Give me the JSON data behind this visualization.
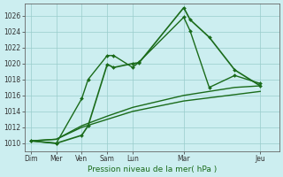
{
  "title": "",
  "xlabel": "Pression niveau de la mer( hPa )",
  "ylabel": "",
  "background_color": "#cceef0",
  "grid_color": "#99cccc",
  "line_color": "#1a6b1a",
  "ylim": [
    1009,
    1027.5
  ],
  "yticks": [
    1010,
    1012,
    1014,
    1016,
    1018,
    1020,
    1022,
    1024,
    1026
  ],
  "x_positions": [
    0,
    2,
    4,
    6,
    8,
    12,
    18
  ],
  "x_labels": [
    "Dim",
    "Mer",
    "Ven",
    "Sam",
    "Lun",
    "Mar",
    "Jeu"
  ],
  "xlim": [
    -0.5,
    19.5
  ],
  "series": [
    {
      "x": [
        0,
        2,
        4,
        4.5,
        6,
        6.5,
        8,
        8.5,
        12,
        12.5,
        14,
        16,
        18
      ],
      "y": [
        1010.3,
        1010.0,
        1011.0,
        1012.2,
        1019.9,
        1019.5,
        1020.0,
        1020.1,
        1027.0,
        1025.5,
        1023.3,
        1019.2,
        1017.2
      ],
      "marker": "D",
      "ms": 2.0,
      "lw": 1.2
    },
    {
      "x": [
        0,
        2,
        4,
        4.5,
        6,
        6.5,
        8,
        8.5,
        12,
        12.5,
        14,
        16,
        18
      ],
      "y": [
        1010.3,
        1010.0,
        1015.6,
        1018.0,
        1021.0,
        1021.0,
        1019.5,
        1020.2,
        1025.8,
        1024.1,
        1017.0,
        1018.5,
        1017.5
      ],
      "marker": "D",
      "ms": 2.0,
      "lw": 1.0
    },
    {
      "x": [
        0,
        2,
        4,
        6,
        8,
        12,
        14,
        16,
        18
      ],
      "y": [
        1010.3,
        1010.5,
        1012.2,
        1013.4,
        1014.5,
        1016.0,
        1016.5,
        1017.0,
        1017.2
      ],
      "marker": null,
      "ms": 0,
      "lw": 1.0
    },
    {
      "x": [
        0,
        2,
        4,
        6,
        8,
        12,
        14,
        16,
        18
      ],
      "y": [
        1010.3,
        1010.5,
        1012.0,
        1013.0,
        1014.0,
        1015.3,
        1015.7,
        1016.1,
        1016.5
      ],
      "marker": null,
      "ms": 0,
      "lw": 1.0
    }
  ]
}
